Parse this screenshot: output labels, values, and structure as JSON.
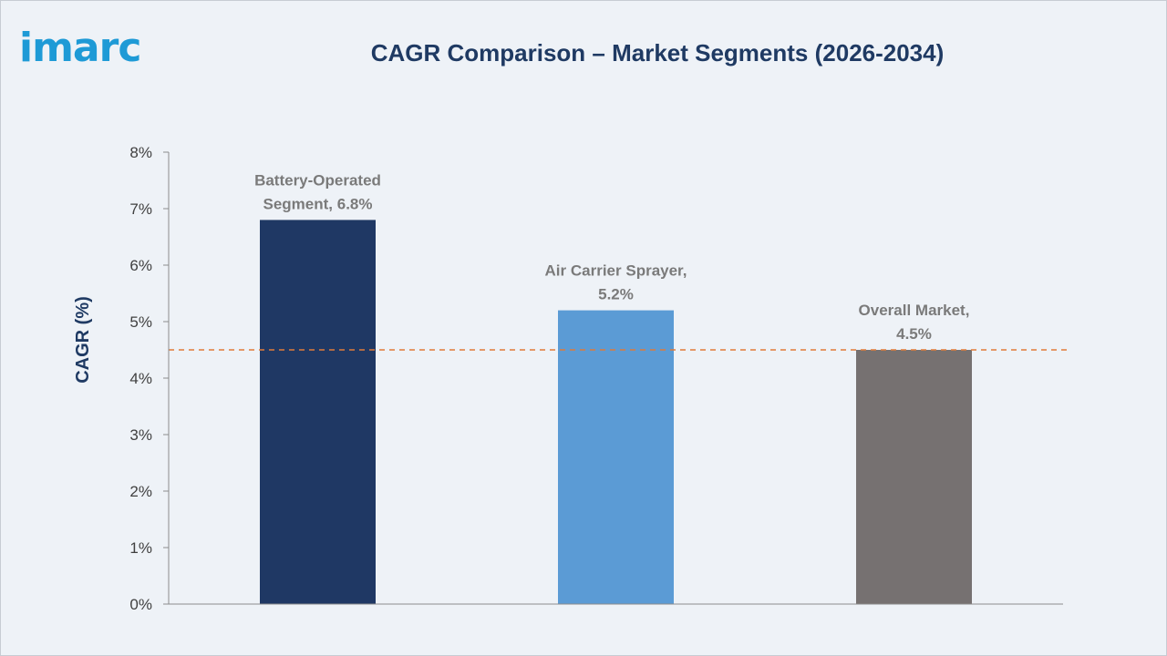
{
  "brand": {
    "logo_text": "imarc"
  },
  "chart_data": {
    "type": "bar",
    "title": "CAGR Comparison – Market Segments (2026-2034)",
    "xlabel": "",
    "ylabel": "CAGR (%)",
    "ylim": [
      0,
      8
    ],
    "y_ticks": [
      "0%",
      "1%",
      "2%",
      "3%",
      "4%",
      "5%",
      "6%",
      "7%",
      "8%"
    ],
    "categories": [
      "Battery-Operated Segment",
      "Air Carrier Sprayer",
      "Overall Market"
    ],
    "values": [
      6.8,
      5.2,
      4.5
    ],
    "data_labels": [
      [
        "Battery-Operated",
        "Segment, 6.8%"
      ],
      [
        "Air Carrier Sprayer,",
        "5.2%"
      ],
      [
        "Overall Market,",
        "4.5%"
      ]
    ],
    "colors": [
      "#1f3864",
      "#5b9bd5",
      "#767171"
    ],
    "reference_line": {
      "value": 4.5,
      "style": "dashed",
      "color": "#e07b39"
    },
    "grid": false,
    "legend": "none"
  }
}
